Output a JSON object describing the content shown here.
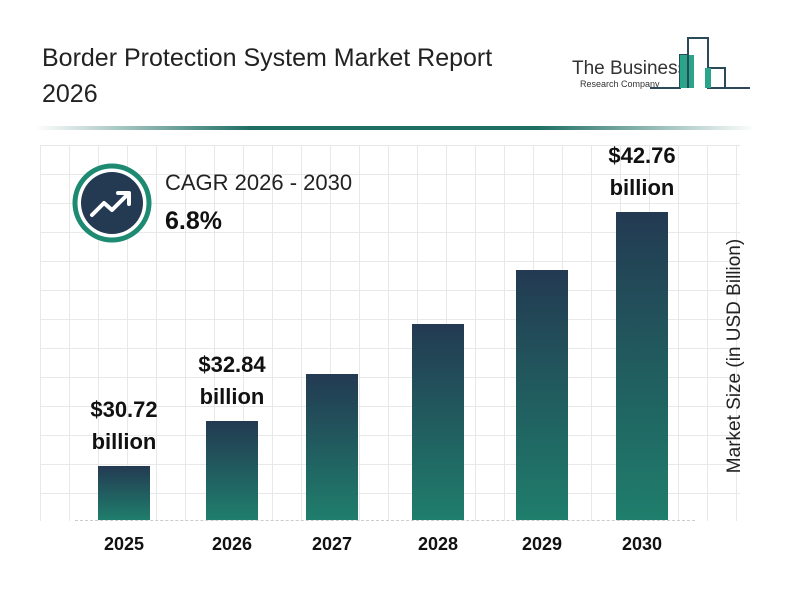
{
  "header": {
    "title": "Border Protection System Market Report 2026",
    "logo_line1": "The Business",
    "logo_line2": "Research Company"
  },
  "cagr": {
    "label": "CAGR 2026 - 2030",
    "value": "6.8%",
    "icon": "trend-up-arrow-icon"
  },
  "colors": {
    "bar_top": "#233a52",
    "bar_bottom": "#1f7e6c",
    "accent": "#1e8a72"
  },
  "chart_data": {
    "type": "bar",
    "title": "",
    "xlabel": "",
    "ylabel": "Market Size (in USD Billion)",
    "categories": [
      "2025",
      "2026",
      "2027",
      "2028",
      "2029",
      "2030"
    ],
    "values": [
      30.72,
      32.84,
      35.07,
      37.46,
      40.01,
      42.76
    ],
    "data_labels": [
      {
        "category": "2025",
        "line1": "$30.72",
        "line2": "billion"
      },
      {
        "category": "2026",
        "line1": "$32.84",
        "line2": "billion"
      },
      {
        "category": "2030",
        "line1": "$42.76",
        "line2": "billion"
      }
    ],
    "grid": true,
    "legend": "none"
  }
}
